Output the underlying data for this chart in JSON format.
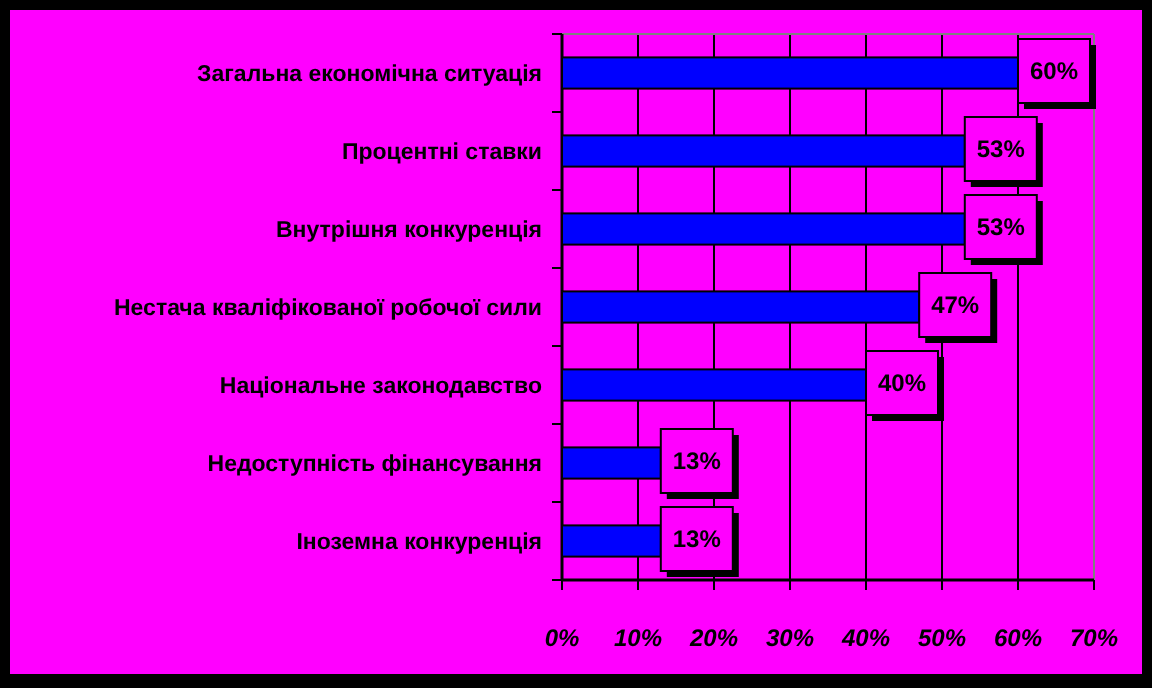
{
  "chart_data": {
    "type": "bar",
    "orientation": "horizontal",
    "categories": [
      "Загальна економічна ситуація",
      "Процентні ставки",
      "Внутрішня конкуренція",
      "Нестача кваліфікованої робочої сили",
      "Національне законодавство",
      "Недоступність фінансування",
      "Іноземна конкуренція"
    ],
    "values": [
      60,
      53,
      53,
      47,
      40,
      13,
      13
    ],
    "value_labels": [
      "60%",
      "53%",
      "53%",
      "47%",
      "40%",
      "13%",
      "13%"
    ],
    "color": "#0000ff",
    "xlim": [
      0,
      70
    ],
    "xticks": [
      {
        "value": 0,
        "label": "0%"
      },
      {
        "value": 10,
        "label": "10%"
      },
      {
        "value": 20,
        "label": "20%"
      },
      {
        "value": 30,
        "label": "30%"
      },
      {
        "value": 40,
        "label": "40%"
      },
      {
        "value": 50,
        "label": "50%"
      },
      {
        "value": 60,
        "label": "60%"
      },
      {
        "value": 70,
        "label": "70%"
      }
    ],
    "grid": "x"
  }
}
